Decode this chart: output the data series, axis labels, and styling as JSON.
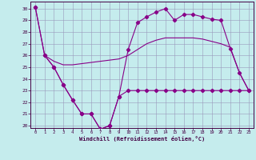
{
  "xlabel": "Windchill (Refroidissement éolien,°C)",
  "background_color": "#c5eced",
  "grid_color": "#9999bb",
  "line_color": "#880088",
  "xlim": [
    -0.5,
    23.5
  ],
  "ylim": [
    19.8,
    30.6
  ],
  "xticks": [
    0,
    1,
    2,
    3,
    4,
    5,
    6,
    7,
    8,
    9,
    10,
    11,
    12,
    13,
    14,
    15,
    16,
    17,
    18,
    19,
    20,
    21,
    22,
    23
  ],
  "yticks": [
    20,
    21,
    22,
    23,
    24,
    25,
    26,
    27,
    28,
    29,
    30
  ],
  "curve1_x": [
    0,
    1,
    2,
    3,
    4,
    5,
    6,
    7,
    8,
    9,
    10,
    11,
    12,
    13,
    14,
    15,
    16,
    17,
    18,
    19,
    20,
    21,
    22,
    23
  ],
  "curve1_y": [
    30.1,
    26.0,
    25.0,
    23.5,
    22.2,
    21.0,
    21.0,
    19.7,
    20.0,
    22.5,
    23.0,
    23.0,
    23.0,
    23.0,
    23.0,
    23.0,
    23.0,
    23.0,
    23.0,
    23.0,
    23.0,
    23.0,
    23.0,
    23.0
  ],
  "curve2_x": [
    0,
    1,
    2,
    3,
    4,
    5,
    6,
    7,
    8,
    9,
    10,
    11,
    12,
    13,
    14,
    15,
    16,
    17,
    18,
    19,
    20,
    21,
    22,
    23
  ],
  "curve2_y": [
    30.1,
    26.0,
    25.0,
    23.5,
    22.2,
    21.0,
    21.0,
    19.7,
    20.0,
    22.5,
    26.5,
    28.8,
    29.3,
    29.7,
    30.0,
    29.0,
    29.5,
    29.5,
    29.3,
    29.1,
    29.0,
    26.6,
    24.5,
    23.0
  ],
  "curve3_x": [
    1,
    2,
    3,
    4,
    5,
    6,
    7,
    8,
    9,
    10,
    11,
    12,
    13,
    14,
    15,
    16,
    17,
    18,
    19,
    20,
    21,
    22,
    23
  ],
  "curve3_y": [
    26.0,
    25.5,
    25.2,
    25.2,
    25.3,
    25.4,
    25.5,
    25.6,
    25.7,
    26.0,
    26.5,
    27.0,
    27.3,
    27.5,
    27.5,
    27.5,
    27.5,
    27.4,
    27.2,
    27.0,
    26.7,
    24.5,
    23.0
  ]
}
